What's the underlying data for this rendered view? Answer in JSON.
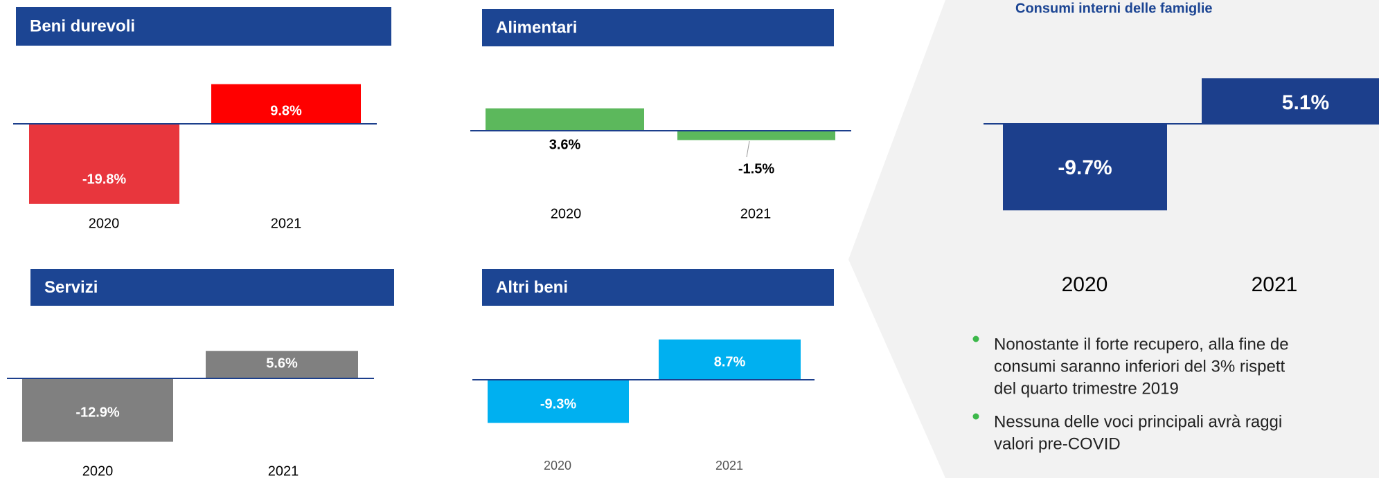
{
  "chart_data": [
    {
      "type": "bar",
      "title": "Beni durevoli",
      "categories": [
        "2020",
        "2021"
      ],
      "values": [
        -19.8,
        9.8
      ],
      "value_labels": [
        "-19.8%",
        "9.8%"
      ],
      "colors": [
        "#e8363d",
        "#ff0000"
      ]
    },
    {
      "type": "bar",
      "title": "Alimentari",
      "categories": [
        "2020",
        "2021"
      ],
      "values": [
        3.6,
        -1.5
      ],
      "value_labels": [
        "3.6%",
        "-1.5%"
      ],
      "colors": [
        "#5cb85c",
        "#5cb85c"
      ]
    },
    {
      "type": "bar",
      "title": "Servizi",
      "categories": [
        "2020",
        "2021"
      ],
      "values": [
        -12.9,
        5.6
      ],
      "value_labels": [
        "-12.9%",
        "5.6%"
      ],
      "colors": [
        "#808080",
        "#808080"
      ]
    },
    {
      "type": "bar",
      "title": "Altri beni",
      "categories": [
        "2020",
        "2021"
      ],
      "values": [
        -9.3,
        8.7
      ],
      "value_labels": [
        "-9.3%",
        "8.7%"
      ],
      "colors": [
        "#00b0f0",
        "#00b0f0"
      ]
    },
    {
      "type": "bar",
      "title": "Consumi interni delle famiglie",
      "categories": [
        "2020",
        "2021"
      ],
      "values": [
        -9.7,
        5.1
      ],
      "value_labels": [
        "-9.7%",
        "5.1%"
      ],
      "colors": [
        "#1c3f8c",
        "#1c3f8c"
      ]
    }
  ],
  "bullets": [
    [
      "Nonostante il forte recupero, alla fine de",
      "consumi saranno inferiori del 3% rispett",
      "del quarto trimestre 2019"
    ],
    [
      "Nessuna delle voci principali avrà raggi",
      "valori pre-COVID"
    ]
  ]
}
